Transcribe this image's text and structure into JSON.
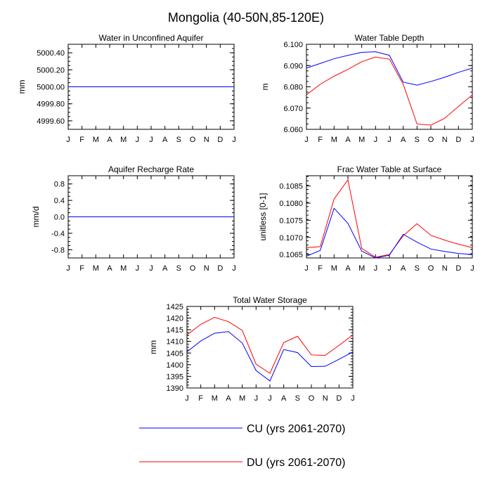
{
  "figure": {
    "title": "Mongolia (40-50N,85-120E)",
    "months": [
      "J",
      "F",
      "M",
      "A",
      "M",
      "J",
      "J",
      "A",
      "S",
      "O",
      "N",
      "D",
      "J"
    ],
    "series_colors": {
      "CU": "#0000ff",
      "DU": "#ff0000"
    }
  },
  "legend": [
    {
      "label": "CU (yrs 2061-2070)",
      "color": "#0000ff"
    },
    {
      "label": "DU (yrs 2061-2070)",
      "color": "#ff0000"
    }
  ],
  "chart_data": [
    {
      "type": "line",
      "title": "Water in Unconfined Aquifer",
      "ylabel": "mm",
      "ylim": [
        4999.5,
        5000.5
      ],
      "yticks": [
        4999.6,
        4999.8,
        5000.0,
        5000.2,
        5000.4
      ],
      "ytick_labels": [
        "4999.60",
        "4999.80",
        "5000.00",
        "5000.20",
        "5000.40"
      ],
      "x": [
        "J",
        "F",
        "M",
        "A",
        "M",
        "J",
        "J",
        "A",
        "S",
        "O",
        "N",
        "D",
        "J"
      ],
      "series": [
        {
          "name": "CU (yrs 2061-2070)",
          "color": "#0000ff",
          "values": [
            5000,
            5000,
            5000,
            5000,
            5000,
            5000,
            5000,
            5000,
            5000,
            5000,
            5000,
            5000,
            5000
          ]
        },
        {
          "name": "DU (yrs 2061-2070)",
          "color": "#ff0000",
          "values": [
            5000,
            5000,
            5000,
            5000,
            5000,
            5000,
            5000,
            5000,
            5000,
            5000,
            5000,
            5000,
            5000
          ]
        }
      ]
    },
    {
      "type": "line",
      "title": "Water Table Depth",
      "ylabel": "m",
      "ylim": [
        6.06,
        6.1
      ],
      "yticks": [
        6.06,
        6.07,
        6.08,
        6.09,
        6.1
      ],
      "ytick_labels": [
        "6.060",
        "6.070",
        "6.080",
        "6.090",
        "6.100"
      ],
      "x": [
        "J",
        "F",
        "M",
        "A",
        "M",
        "J",
        "J",
        "A",
        "S",
        "O",
        "N",
        "D",
        "J"
      ],
      "series": [
        {
          "name": "CU (yrs 2061-2070)",
          "color": "#0000ff",
          "values": [
            6.0888,
            6.091,
            6.0932,
            6.0948,
            6.0962,
            6.0965,
            6.0948,
            6.0822,
            6.0808,
            6.0825,
            6.0845,
            6.0868,
            6.0888
          ]
        },
        {
          "name": "DU (yrs 2061-2070)",
          "color": "#ff0000",
          "values": [
            6.0762,
            6.0812,
            6.085,
            6.0882,
            6.0918,
            6.094,
            6.093,
            6.0812,
            6.0625,
            6.062,
            6.0652,
            6.0708,
            6.0762
          ]
        }
      ]
    },
    {
      "type": "line",
      "title": "Aquifer Recharge Rate",
      "ylabel": "mm/d",
      "ylim": [
        -1.0,
        1.0
      ],
      "yticks": [
        -0.8,
        -0.4,
        0.0,
        0.4,
        0.8
      ],
      "ytick_labels": [
        "-0.8",
        "-0.4",
        "0.0",
        "0.4",
        "0.8"
      ],
      "x": [
        "J",
        "F",
        "M",
        "A",
        "M",
        "J",
        "J",
        "A",
        "S",
        "O",
        "N",
        "D",
        "J"
      ],
      "series": [
        {
          "name": "CU (yrs 2061-2070)",
          "color": "#0000ff",
          "values": [
            0,
            0,
            0,
            0,
            0,
            0,
            0,
            0,
            0,
            0,
            0,
            0,
            0
          ]
        },
        {
          "name": "DU (yrs 2061-2070)",
          "color": "#ff0000",
          "values": [
            0,
            0,
            0,
            0,
            0,
            0,
            0,
            0,
            0,
            0,
            0,
            0,
            0
          ]
        }
      ]
    },
    {
      "type": "line",
      "title": "Frac Water Table at Surface",
      "ylabel": "unitless [0-1]",
      "ylim": [
        0.1064,
        0.1088
      ],
      "yticks": [
        0.1065,
        0.107,
        0.1075,
        0.108,
        0.1085
      ],
      "ytick_labels": [
        "0.1065",
        "0.1070",
        "0.1075",
        "0.1080",
        "0.1085"
      ],
      "x": [
        "J",
        "F",
        "M",
        "A",
        "M",
        "J",
        "J",
        "A",
        "S",
        "O",
        "N",
        "D",
        "J"
      ],
      "series": [
        {
          "name": "CU (yrs 2061-2070)",
          "color": "#0000ff",
          "values": [
            0.10645,
            0.10662,
            0.10785,
            0.10741,
            0.1066,
            0.1064,
            0.10648,
            0.10709,
            0.10686,
            0.10666,
            0.10659,
            0.10653,
            0.1065
          ]
        },
        {
          "name": "DU (yrs 2061-2070)",
          "color": "#ff0000",
          "values": [
            0.1067,
            0.10673,
            0.10812,
            0.10868,
            0.10668,
            0.10642,
            0.1065,
            0.10705,
            0.1074,
            0.10706,
            0.10692,
            0.1068,
            0.1067
          ]
        }
      ]
    },
    {
      "type": "line",
      "title": "Total Water Storage",
      "ylabel": "mm",
      "ylim": [
        1390,
        1425
      ],
      "yticks": [
        1390,
        1395,
        1400,
        1405,
        1410,
        1415,
        1420,
        1425
      ],
      "ytick_labels": [
        "1390",
        "1395",
        "1400",
        "1405",
        "1410",
        "1415",
        "1420",
        "1425"
      ],
      "x": [
        "J",
        "F",
        "M",
        "A",
        "M",
        "J",
        "J",
        "A",
        "S",
        "O",
        "N",
        "D",
        "J"
      ],
      "series": [
        {
          "name": "CU (yrs 2061-2070)",
          "color": "#0000ff",
          "values": [
            1405.5,
            1410.2,
            1413.5,
            1414.2,
            1409.3,
            1397.5,
            1393.0,
            1406.5,
            1405.2,
            1399.2,
            1399.3,
            1402.3,
            1405.5
          ]
        },
        {
          "name": "DU (yrs 2061-2070)",
          "color": "#ff0000",
          "values": [
            1412.8,
            1417.3,
            1420.3,
            1418.5,
            1414.7,
            1400.2,
            1396.3,
            1409.5,
            1412.2,
            1404.2,
            1404.0,
            1408.3,
            1412.8
          ]
        }
      ]
    }
  ]
}
